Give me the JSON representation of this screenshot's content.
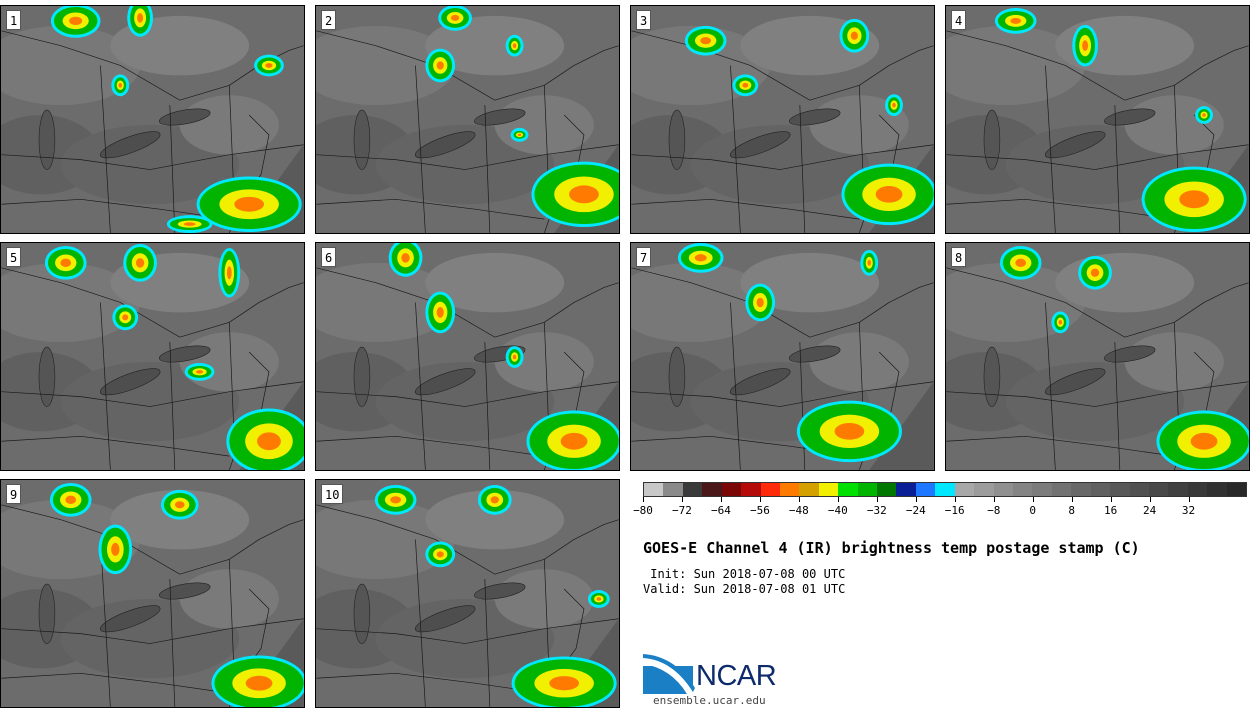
{
  "panels": [
    {
      "label": "1"
    },
    {
      "label": "2"
    },
    {
      "label": "3"
    },
    {
      "label": "4"
    },
    {
      "label": "5"
    },
    {
      "label": "6"
    },
    {
      "label": "7"
    },
    {
      "label": "8"
    },
    {
      "label": "9"
    },
    {
      "label": "10"
    }
  ],
  "colorbar": {
    "colors": [
      "#c8c8c8",
      "#8a8a8a",
      "#3a3a3a",
      "#4a1818",
      "#7a0606",
      "#b40a0a",
      "#ff2a0a",
      "#ff7a00",
      "#d4a000",
      "#f0f000",
      "#00e000",
      "#00b400",
      "#007800",
      "#0a1e96",
      "#1e78ff",
      "#00e8ff",
      "#a8a8a8",
      "#9c9c9c",
      "#909090",
      "#848484",
      "#7c7c7c",
      "#727272",
      "#686868",
      "#606060",
      "#585858",
      "#505050",
      "#484848",
      "#404040",
      "#383838",
      "#303030",
      "#282828"
    ],
    "tick_labels": [
      "−80",
      "−72",
      "−64",
      "−56",
      "−48",
      "−40",
      "−32",
      "−24",
      "−16",
      "−8",
      "0",
      "8",
      "16",
      "24",
      "32"
    ]
  },
  "title": "GOES-E Channel 4 (IR) brightness temp postage stamp (C)",
  "init_line": " Init: Sun 2018-07-08 00 UTC",
  "valid_line": "Valid: Sun 2018-07-08 01 UTC",
  "logo_text": "NCAR",
  "url": "ensemble.ucar.edu"
}
